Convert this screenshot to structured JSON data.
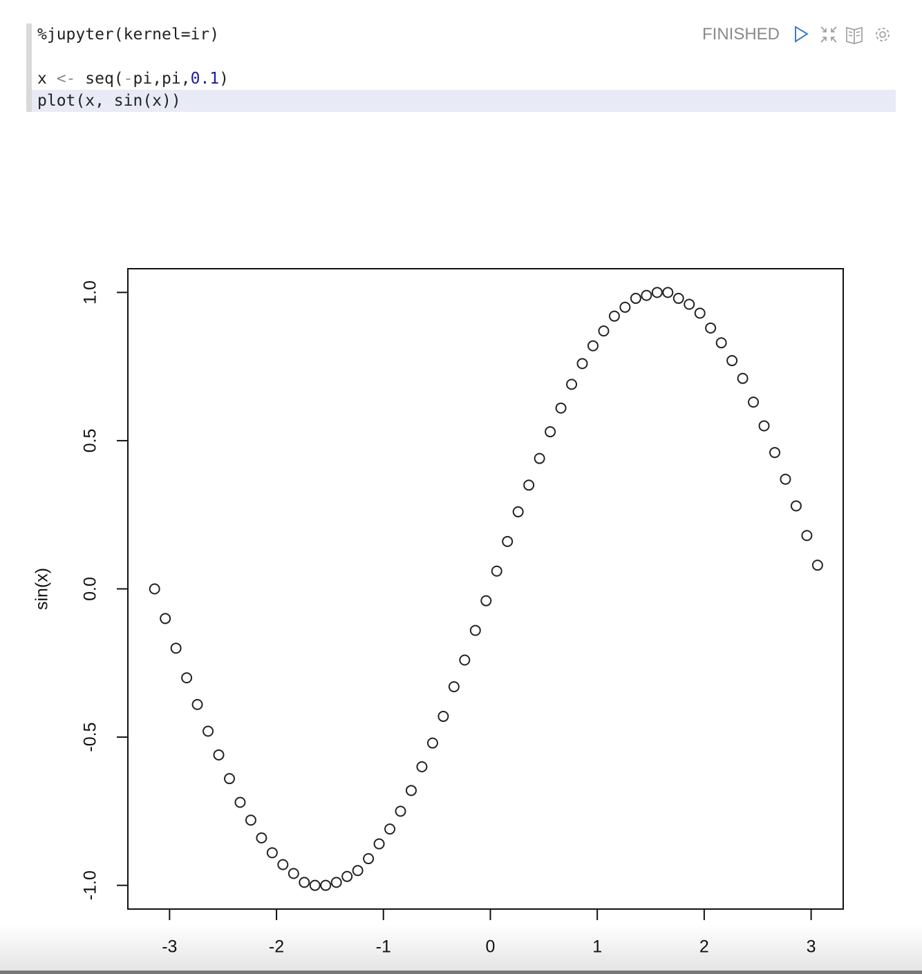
{
  "notebook": {
    "status": "FINISHED",
    "code": {
      "lines": [
        [
          "%jupyter(kernel=ir)"
        ],
        [
          "x ",
          "<-",
          " seq(",
          "-",
          "pi,pi,",
          "0.1",
          ")"
        ],
        [
          "plot(x, sin(x))"
        ]
      ]
    }
  },
  "chart_data": {
    "type": "scatter",
    "y_label": "sin(x)",
    "x": [
      -3.14,
      -3.04,
      -2.94,
      -2.84,
      -2.74,
      -2.64,
      -2.54,
      -2.44,
      -2.34,
      -2.24,
      -2.14,
      -2.04,
      -1.94,
      -1.84,
      -1.74,
      -1.64,
      -1.54,
      -1.44,
      -1.34,
      -1.24,
      -1.14,
      -1.04,
      -0.94,
      -0.84,
      -0.74,
      -0.64,
      -0.54,
      -0.44,
      -0.34,
      -0.24,
      -0.14,
      -0.04,
      0.06,
      0.16,
      0.26,
      0.36,
      0.46,
      0.56,
      0.66,
      0.76,
      0.86,
      0.96,
      1.06,
      1.16,
      1.26,
      1.36,
      1.46,
      1.56,
      1.66,
      1.76,
      1.86,
      1.96,
      2.06,
      2.16,
      2.26,
      2.36,
      2.46,
      2.56,
      2.66,
      2.76,
      2.86,
      2.96,
      3.06
    ],
    "values": [
      0,
      -0.1,
      -0.2,
      -0.3,
      -0.39,
      -0.48,
      -0.56,
      -0.64,
      -0.72,
      -0.78,
      -0.84,
      -0.89,
      -0.93,
      -0.96,
      -0.99,
      -1,
      -1,
      -0.99,
      -0.97,
      -0.95,
      -0.91,
      -0.86,
      -0.81,
      -0.75,
      -0.68,
      -0.6,
      -0.52,
      -0.43,
      -0.33,
      -0.24,
      -0.14,
      -0.04,
      0.06,
      0.16,
      0.26,
      0.35,
      0.44,
      0.53,
      0.61,
      0.69,
      0.76,
      0.82,
      0.87,
      0.92,
      0.95,
      0.98,
      0.99,
      1,
      1,
      0.98,
      0.96,
      0.93,
      0.88,
      0.83,
      0.77,
      0.71,
      0.63,
      0.55,
      0.46,
      0.37,
      0.28,
      0.18,
      0.08
    ],
    "color": "#222222",
    "xlim": [
      -3.39,
      3.3
    ],
    "ylim": [
      -1.08,
      1.08
    ],
    "xticks": [
      -3,
      -2,
      -1,
      0,
      1,
      2,
      3
    ],
    "yticks": [
      {
        "value": -1,
        "label": "-1.0"
      },
      {
        "value": -0.5,
        "label": "-0.5"
      },
      {
        "value": 0,
        "label": "0.0"
      },
      0.5,
      {
        "value": 1,
        "label": "1.0"
      }
    ]
  }
}
